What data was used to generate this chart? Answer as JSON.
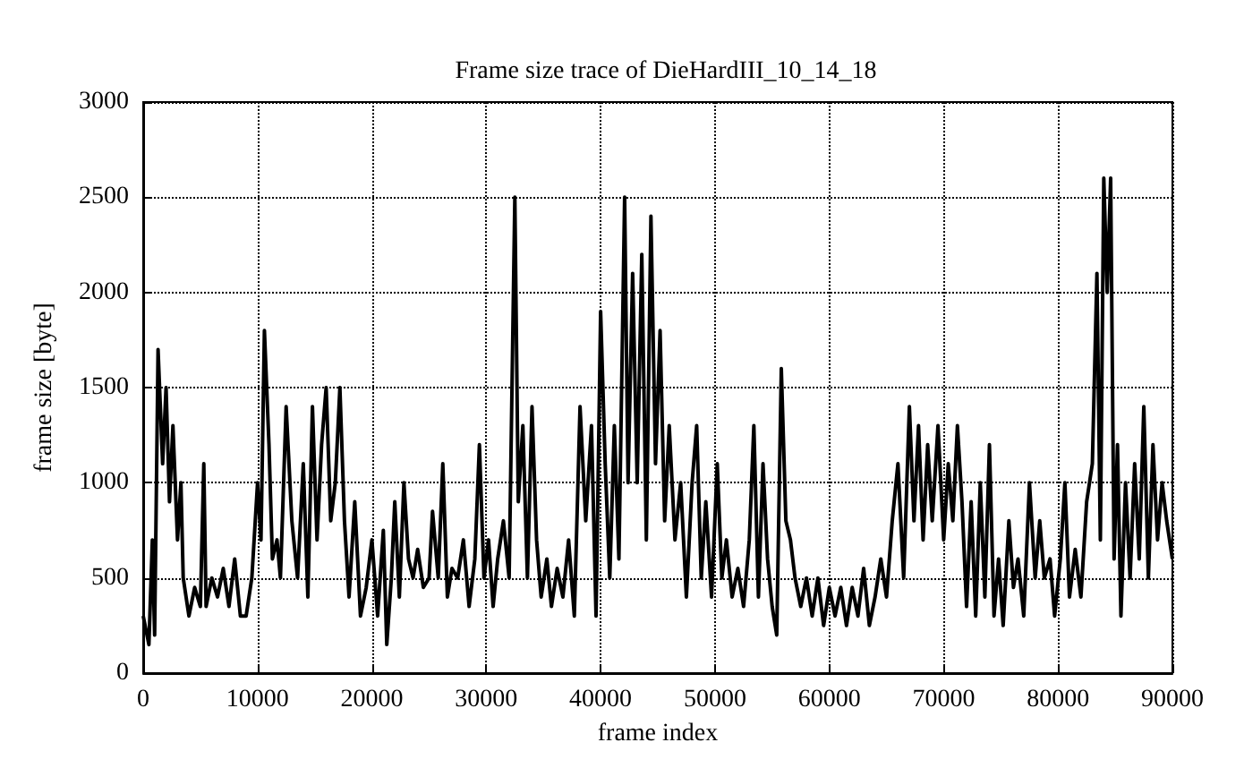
{
  "chart_data": {
    "type": "line",
    "title": "Frame size trace of DieHardIII_10_14_18",
    "xlabel": "frame index",
    "ylabel": "frame size [byte]",
    "xlim": [
      0,
      90000
    ],
    "xticks": [
      0,
      10000,
      20000,
      30000,
      40000,
      50000,
      60000,
      70000,
      80000,
      90000
    ],
    "ylim": [
      0,
      3000
    ],
    "yticks": [
      0,
      500,
      1000,
      1500,
      2000,
      2500,
      3000
    ],
    "grid": true,
    "marker": "none",
    "line_style": "solid",
    "series": [
      {
        "color": "#000000",
        "x": [
          0,
          500,
          800,
          1000,
          1300,
          1700,
          2000,
          2300,
          2600,
          3000,
          3300,
          3500,
          4000,
          4500,
          5000,
          5300,
          5500,
          6000,
          6500,
          7000,
          7500,
          8000,
          8500,
          9000,
          9500,
          10000,
          10300,
          10600,
          11000,
          11300,
          11700,
          12000,
          12500,
          13000,
          13500,
          14000,
          14400,
          14800,
          15200,
          15600,
          16000,
          16400,
          16800,
          17200,
          17600,
          18000,
          18500,
          19000,
          19500,
          20000,
          20500,
          21000,
          21300,
          21700,
          22000,
          22400,
          22800,
          23200,
          23600,
          24000,
          24500,
          25000,
          25300,
          25800,
          26200,
          26600,
          27000,
          27500,
          28000,
          28500,
          29000,
          29400,
          29800,
          30200,
          30600,
          31000,
          31500,
          32000,
          32500,
          32800,
          33200,
          33600,
          34000,
          34400,
          34800,
          35300,
          35700,
          36200,
          36700,
          37200,
          37700,
          38200,
          38700,
          39200,
          39600,
          40000,
          40400,
          40800,
          41200,
          41600,
          42100,
          42400,
          42800,
          43200,
          43600,
          44000,
          44400,
          44800,
          45200,
          45600,
          46000,
          46500,
          47000,
          47500,
          48000,
          48400,
          48800,
          49200,
          49700,
          50200,
          50600,
          51000,
          51500,
          52000,
          52500,
          53000,
          53400,
          53800,
          54200,
          54600,
          55000,
          55400,
          55800,
          56200,
          56600,
          57000,
          57500,
          58000,
          58500,
          59000,
          59500,
          60000,
          60500,
          61000,
          61500,
          62000,
          62500,
          63000,
          63500,
          64000,
          64500,
          65000,
          65500,
          66000,
          66500,
          67000,
          67400,
          67800,
          68200,
          68600,
          69000,
          69500,
          70000,
          70400,
          70800,
          71200,
          71600,
          72000,
          72400,
          72800,
          73200,
          73600,
          74000,
          74400,
          74800,
          75200,
          75700,
          76100,
          76500,
          77000,
          77500,
          78000,
          78400,
          78800,
          79300,
          79700,
          80200,
          80600,
          81000,
          81500,
          82000,
          82500,
          83000,
          83400,
          83700,
          84000,
          84300,
          84600,
          84900,
          85200,
          85500,
          85900,
          86300,
          86700,
          87100,
          87500,
          87900,
          88300,
          88700,
          89100,
          89500,
          90000
        ],
        "values": [
          300,
          150,
          700,
          200,
          1700,
          1100,
          1500,
          900,
          1300,
          700,
          1000,
          500,
          300,
          450,
          350,
          1100,
          350,
          500,
          400,
          550,
          350,
          600,
          300,
          300,
          500,
          1000,
          700,
          1800,
          1200,
          600,
          700,
          500,
          1400,
          800,
          500,
          1100,
          400,
          1400,
          700,
          1200,
          1500,
          800,
          1000,
          1500,
          800,
          400,
          900,
          300,
          450,
          700,
          300,
          750,
          150,
          500,
          900,
          400,
          1000,
          600,
          500,
          650,
          450,
          500,
          850,
          500,
          1100,
          400,
          550,
          500,
          700,
          350,
          600,
          1200,
          500,
          700,
          350,
          600,
          800,
          500,
          2500,
          900,
          1300,
          500,
          1400,
          700,
          400,
          600,
          350,
          550,
          400,
          700,
          300,
          1400,
          800,
          1300,
          300,
          1900,
          1100,
          500,
          1300,
          600,
          2500,
          1000,
          2100,
          1000,
          2200,
          700,
          2400,
          1100,
          1800,
          800,
          1300,
          700,
          1000,
          400,
          1000,
          1300,
          500,
          900,
          400,
          1100,
          500,
          700,
          400,
          550,
          350,
          700,
          1300,
          400,
          1100,
          600,
          350,
          200,
          1600,
          800,
          700,
          500,
          350,
          500,
          300,
          500,
          250,
          450,
          300,
          450,
          250,
          450,
          300,
          550,
          250,
          400,
          600,
          400,
          800,
          1100,
          500,
          1400,
          800,
          1300,
          700,
          1200,
          800,
          1300,
          700,
          1100,
          800,
          1300,
          900,
          350,
          900,
          300,
          1000,
          400,
          1200,
          300,
          600,
          250,
          800,
          450,
          600,
          300,
          1000,
          500,
          800,
          500,
          600,
          300,
          600,
          1000,
          400,
          650,
          400,
          900,
          1100,
          2100,
          700,
          2600,
          2000,
          2600,
          600,
          1200,
          300,
          1000,
          500,
          1100,
          600,
          1400,
          500,
          1200,
          700,
          1000,
          800,
          600
        ]
      }
    ]
  }
}
